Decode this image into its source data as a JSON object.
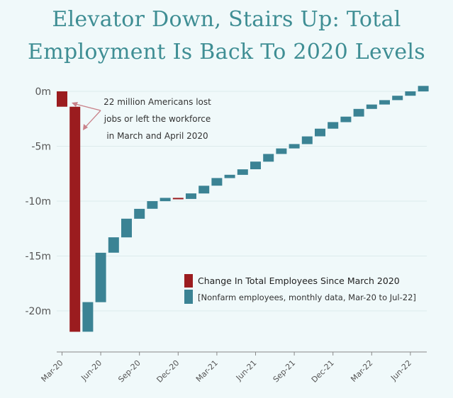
{
  "title_line1": "Elevator Down, Stairs Up: Total",
  "title_line2": "Employment Is Back To 2020 Levels",
  "colors": {
    "background": "#f0f9fa",
    "title": "#3f8e94",
    "drop": "#9b1c1f",
    "rise": "#3b8394",
    "arrow": "#c9828a"
  },
  "annotation": [
    "22 million Americans lost",
    "jobs or left the workforce",
    "in March and April 2020"
  ],
  "legend": {
    "main": "Change In Total Employees Since March 2020",
    "sub": "[Nonfarm employees, monthly data, Mar-20 to Jul-22]"
  },
  "chart_data": {
    "type": "waterfall",
    "ylim": [
      -22.8,
      0
    ],
    "yticks": [
      0,
      -5,
      -10,
      -15,
      -20
    ],
    "ytick_labels": [
      "0m",
      "-5m",
      "-10m",
      "-15m",
      "-20m"
    ],
    "xtick_labels": [
      "Mar-20",
      "Jun-20",
      "Sep-20",
      "Dec-20",
      "Mar-21",
      "Jun-21",
      "Sep-21",
      "Dec-21",
      "Mar-22",
      "Jun-22"
    ],
    "xtick_month_index": [
      0,
      3,
      6,
      9,
      12,
      15,
      18,
      21,
      24,
      27
    ],
    "months": [
      "Mar-20",
      "Apr-20",
      "May-20",
      "Jun-20",
      "Jul-20",
      "Aug-20",
      "Sep-20",
      "Oct-20",
      "Nov-20",
      "Dec-20",
      "Jan-21",
      "Feb-21",
      "Mar-21",
      "Apr-21",
      "May-21",
      "Jun-21",
      "Jul-21",
      "Aug-21",
      "Sep-21",
      "Oct-21",
      "Nov-21",
      "Dec-21",
      "Jan-22",
      "Feb-22",
      "Mar-22",
      "Apr-22",
      "May-22",
      "Jun-22",
      "Jul-22"
    ],
    "monthly_change_millions": [
      -1.4,
      -20.5,
      2.7,
      4.5,
      1.4,
      1.7,
      0.9,
      0.7,
      0.3,
      -0.1,
      0.5,
      0.7,
      0.7,
      0.3,
      0.5,
      0.7,
      0.7,
      0.5,
      0.4,
      0.7,
      0.7,
      0.6,
      0.5,
      0.7,
      0.4,
      0.4,
      0.4,
      0.4,
      0.5
    ],
    "cumulative_millions": [
      -1.4,
      -21.9,
      -19.2,
      -14.7,
      -13.3,
      -11.6,
      -10.7,
      -10.0,
      -9.7,
      -9.8,
      -9.3,
      -8.6,
      -7.9,
      -7.6,
      -7.1,
      -6.4,
      -5.7,
      -5.2,
      -4.8,
      -4.1,
      -3.4,
      -2.8,
      -2.3,
      -1.6,
      -1.2,
      -0.8,
      -0.4,
      0.0,
      0.5
    ]
  }
}
